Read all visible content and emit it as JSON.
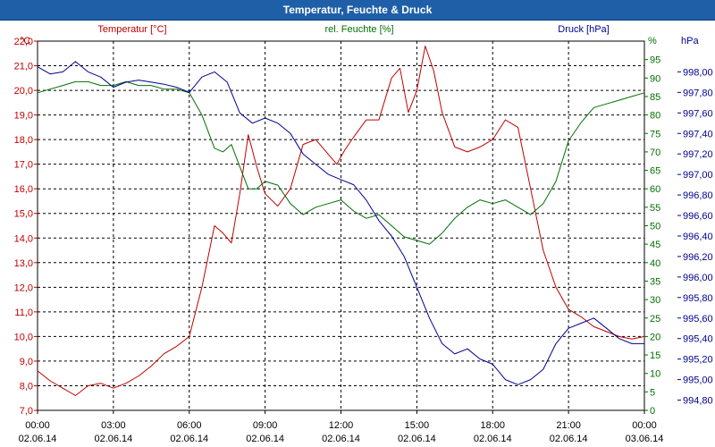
{
  "window_title": "Temperatur, Feuchte & Druck",
  "chart_data": {
    "type": "line",
    "title": "Temperatur, Feuchte & Druck",
    "grid": true,
    "x_ticks": [
      {
        "time": "00:00",
        "date": "02.06.14"
      },
      {
        "time": "03:00",
        "date": "02.06.14"
      },
      {
        "time": "06:00",
        "date": "02.06.14"
      },
      {
        "time": "09:00",
        "date": "02.06.14"
      },
      {
        "time": "12:00",
        "date": "02.06.14"
      },
      {
        "time": "15:00",
        "date": "02.06.14"
      },
      {
        "time": "18:00",
        "date": "02.06.14"
      },
      {
        "time": "21:00",
        "date": "02.06.14"
      },
      {
        "time": "00:00",
        "date": "03.06.14"
      }
    ],
    "axes": {
      "temperature": {
        "label": "Temperatur [°C]",
        "unit": "°C",
        "range": [
          7,
          22
        ],
        "ticks": [
          "7,0",
          "8,0",
          "9,0",
          "10,0",
          "11,0",
          "12,0",
          "13,0",
          "14,0",
          "15,0",
          "16,0",
          "17,0",
          "18,0",
          "19,0",
          "20,0",
          "21,0",
          "22,0"
        ],
        "color": "#c00000"
      },
      "humidity": {
        "label": "rel. Feuchte [%]",
        "unit": "%",
        "range": [
          0,
          100
        ],
        "ticks": [
          "0",
          "5",
          "10",
          "15",
          "20",
          "25",
          "30",
          "35",
          "40",
          "45",
          "50",
          "55",
          "60",
          "65",
          "70",
          "75",
          "80",
          "85",
          "90",
          "95"
        ],
        "color": "#007000"
      },
      "pressure": {
        "label": "Druck [hPa]",
        "unit": "hPa",
        "range": [
          994.7,
          998.3
        ],
        "ticks": [
          "994,80",
          "995,00",
          "995,20",
          "995,40",
          "995,60",
          "995,80",
          "996,00",
          "996,20",
          "996,40",
          "996,60",
          "996,80",
          "997,00",
          "997,20",
          "997,40",
          "997,60",
          "997,80",
          "998,00"
        ],
        "color": "#000090"
      }
    },
    "series": [
      {
        "name": "Temperatur [°C]",
        "axis": "temperature",
        "color": "#c00000",
        "x": [
          "02.06.14 00:00",
          "02.06.14 00:30",
          "02.06.14 01:00",
          "02.06.14 01:30",
          "02.06.14 02:00",
          "02.06.14 02:30",
          "02.06.14 03:00",
          "02.06.14 03:30",
          "02.06.14 04:00",
          "02.06.14 04:30",
          "02.06.14 05:00",
          "02.06.14 05:30",
          "02.06.14 06:00",
          "02.06.14 06:30",
          "02.06.14 07:00",
          "02.06.14 07:20",
          "02.06.14 07:40",
          "02.06.14 08:00",
          "02.06.14 08:20",
          "02.06.14 08:40",
          "02.06.14 09:00",
          "02.06.14 09:30",
          "02.06.14 10:00",
          "02.06.14 10:30",
          "02.06.14 11:00",
          "02.06.14 11:30",
          "02.06.14 11:50",
          "02.06.14 12:10",
          "02.06.14 12:30",
          "02.06.14 13:00",
          "02.06.14 13:30",
          "02.06.14 14:00",
          "02.06.14 14:20",
          "02.06.14 14:40",
          "02.06.14 15:00",
          "02.06.14 15:20",
          "02.06.14 15:40",
          "02.06.14 16:00",
          "02.06.14 16:30",
          "02.06.14 17:00",
          "02.06.14 17:30",
          "02.06.14 18:00",
          "02.06.14 18:30",
          "02.06.14 19:00",
          "02.06.14 19:30",
          "02.06.14 20:00",
          "02.06.14 20:30",
          "02.06.14 21:00",
          "02.06.14 21:30",
          "02.06.14 22:00",
          "02.06.14 22:30",
          "02.06.14 23:00",
          "02.06.14 23:30",
          "03.06.14 00:00"
        ],
        "values": [
          8.6,
          8.2,
          7.9,
          7.6,
          8.0,
          8.1,
          7.9,
          8.1,
          8.4,
          8.8,
          9.3,
          9.6,
          10.0,
          12.0,
          14.5,
          14.2,
          13.8,
          15.8,
          18.2,
          16.9,
          15.8,
          15.3,
          16.0,
          17.8,
          18.0,
          17.4,
          17.0,
          17.6,
          18.1,
          18.8,
          18.8,
          20.5,
          20.9,
          19.1,
          20.0,
          21.8,
          20.8,
          19.1,
          17.7,
          17.5,
          17.7,
          18.0,
          18.8,
          18.5,
          16.0,
          13.5,
          12.0,
          11.1,
          10.8,
          10.4,
          10.2,
          10.0,
          9.9,
          10.0
        ]
      },
      {
        "name": "rel. Feuchte [%]",
        "axis": "humidity",
        "color": "#007000",
        "x": [
          "02.06.14 00:00",
          "02.06.14 00:30",
          "02.06.14 01:00",
          "02.06.14 01:30",
          "02.06.14 02:00",
          "02.06.14 02:30",
          "02.06.14 03:00",
          "02.06.14 03:30",
          "02.06.14 04:00",
          "02.06.14 04:30",
          "02.06.14 05:00",
          "02.06.14 05:30",
          "02.06.14 06:00",
          "02.06.14 06:30",
          "02.06.14 07:00",
          "02.06.14 07:20",
          "02.06.14 07:40",
          "02.06.14 08:00",
          "02.06.14 08:20",
          "02.06.14 08:40",
          "02.06.14 09:00",
          "02.06.14 09:30",
          "02.06.14 10:00",
          "02.06.14 10:30",
          "02.06.14 11:00",
          "02.06.14 11:30",
          "02.06.14 12:00",
          "02.06.14 12:30",
          "02.06.14 13:00",
          "02.06.14 13:30",
          "02.06.14 14:00",
          "02.06.14 14:30",
          "02.06.14 15:00",
          "02.06.14 15:30",
          "02.06.14 16:00",
          "02.06.14 16:30",
          "02.06.14 17:00",
          "02.06.14 17:30",
          "02.06.14 18:00",
          "02.06.14 18:30",
          "02.06.14 19:00",
          "02.06.14 19:30",
          "02.06.14 20:00",
          "02.06.14 20:30",
          "02.06.14 21:00",
          "02.06.14 21:30",
          "02.06.14 22:00",
          "02.06.14 22:30",
          "02.06.14 23:00",
          "02.06.14 23:30",
          "03.06.14 00:00"
        ],
        "values": [
          86,
          87,
          88,
          89,
          89,
          88,
          88,
          89,
          88,
          88,
          87,
          87,
          86,
          80,
          71,
          70,
          72,
          66,
          60,
          60,
          62,
          61,
          56,
          53,
          55,
          56,
          57,
          54,
          52,
          53,
          50,
          47,
          46,
          45,
          48,
          52,
          55,
          57,
          56,
          57,
          55,
          53,
          56,
          62,
          73,
          78,
          82,
          83,
          84,
          85,
          86
        ]
      },
      {
        "name": "Druck [hPa]",
        "axis": "pressure",
        "color": "#000090",
        "x": [
          "02.06.14 00:00",
          "02.06.14 00:30",
          "02.06.14 01:00",
          "02.06.14 01:30",
          "02.06.14 02:00",
          "02.06.14 02:30",
          "02.06.14 03:00",
          "02.06.14 03:30",
          "02.06.14 04:00",
          "02.06.14 04:30",
          "02.06.14 05:00",
          "02.06.14 05:30",
          "02.06.14 06:00",
          "02.06.14 06:30",
          "02.06.14 07:00",
          "02.06.14 07:30",
          "02.06.14 08:00",
          "02.06.14 08:30",
          "02.06.14 09:00",
          "02.06.14 09:30",
          "02.06.14 10:00",
          "02.06.14 10:30",
          "02.06.14 11:00",
          "02.06.14 11:30",
          "02.06.14 12:00",
          "02.06.14 12:30",
          "02.06.14 13:00",
          "02.06.14 13:30",
          "02.06.14 14:00",
          "02.06.14 14:30",
          "02.06.14 15:00",
          "02.06.14 15:30",
          "02.06.14 16:00",
          "02.06.14 16:30",
          "02.06.14 17:00",
          "02.06.14 17:30",
          "02.06.14 18:00",
          "02.06.14 18:30",
          "02.06.14 19:00",
          "02.06.14 19:30",
          "02.06.14 20:00",
          "02.06.14 20:30",
          "02.06.14 21:00",
          "02.06.14 21:30",
          "02.06.14 22:00",
          "02.06.14 22:30",
          "02.06.14 23:00",
          "02.06.14 23:30",
          "03.06.14 00:00"
        ],
        "values": [
          998.05,
          997.98,
          998.0,
          998.1,
          998.0,
          997.95,
          997.85,
          997.9,
          997.92,
          997.9,
          997.88,
          997.85,
          997.8,
          997.95,
          998.0,
          997.9,
          997.6,
          997.5,
          997.55,
          997.5,
          997.4,
          997.2,
          997.1,
          997.0,
          996.95,
          996.9,
          996.75,
          996.55,
          996.4,
          996.2,
          995.9,
          995.6,
          995.35,
          995.25,
          995.3,
          995.2,
          995.15,
          995.0,
          994.95,
          995.0,
          995.1,
          995.35,
          995.5,
          995.55,
          995.6,
          995.5,
          995.4,
          995.35,
          995.35
        ]
      }
    ]
  }
}
